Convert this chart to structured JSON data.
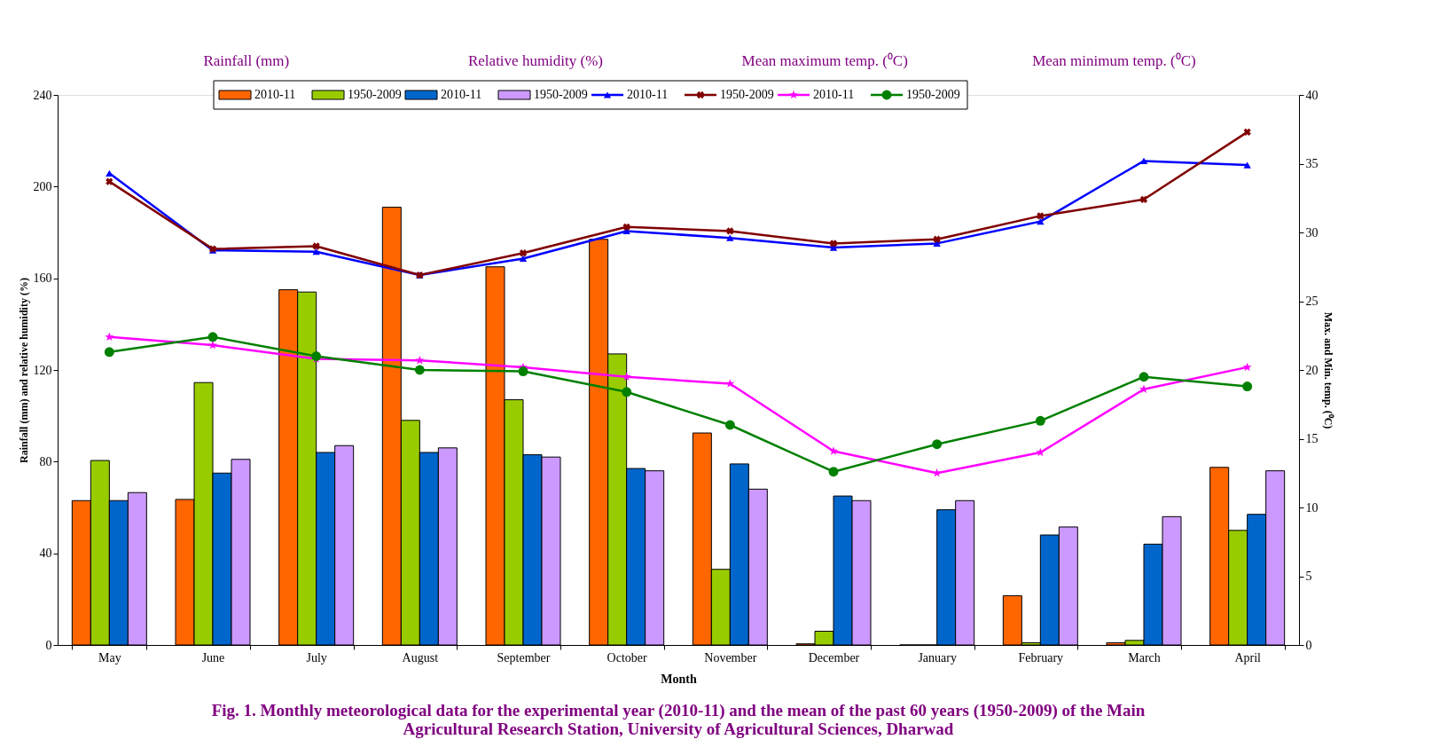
{
  "chart_data": {
    "type": "bar",
    "title": "Fig. 1. Monthly meteorological data for the experimental year (2010-11) and the mean of the past 60 years (1950-2009) of the Main\nAgricultural Research Station, University of Agricultural Sciences, Dharwad",
    "xlabel": "Month",
    "ylabel": "Rainfall (mm) and relative humidity (%)",
    "y2label": "Max. and Min. temp. (⁰C)",
    "annotations": [
      "Rainfall (mm)",
      "Relative humidity (%)",
      "Mean maximum  temp. (⁰C)",
      "Mean minimum temp. (⁰C)"
    ],
    "categories": [
      "May",
      "June",
      "July",
      "August",
      "September",
      "October",
      "November",
      "December",
      "January",
      "February",
      "March",
      "April"
    ],
    "ylim": [
      0,
      240
    ],
    "yticks": [
      0,
      40,
      80,
      120,
      160,
      200,
      240
    ],
    "y2lim": [
      0,
      40
    ],
    "y2ticks": [
      0,
      5,
      10,
      15,
      20,
      25,
      30,
      35,
      40
    ],
    "grid": false,
    "legend": "top",
    "series": [
      {
        "name": "2010-11",
        "type": "bar",
        "color": "#ff6600",
        "values": [
          63,
          63.5,
          155,
          191,
          165,
          177,
          92.5,
          0.5,
          0,
          21.5,
          1,
          77.5
        ]
      },
      {
        "name": "1950-2009",
        "type": "bar",
        "color": "#99cc00",
        "values": [
          80.5,
          114.5,
          154,
          98,
          107,
          127,
          33,
          6,
          0,
          1,
          2,
          50
        ]
      },
      {
        "name": "2010-11",
        "type": "bar",
        "color": "#0066cc",
        "values": [
          63,
          75,
          84,
          84,
          83,
          77,
          79,
          65,
          59,
          48,
          44,
          57
        ]
      },
      {
        "name": "1950-2009",
        "type": "bar",
        "color": "#cc99ff",
        "values": [
          66.5,
          81,
          87,
          86,
          82,
          76,
          68,
          63,
          63,
          51.5,
          56,
          76
        ]
      },
      {
        "name": "2010-11",
        "type": "line",
        "axis": "y2",
        "marker": "triangle",
        "color": "#0000ff",
        "values": [
          34.3,
          28.7,
          28.6,
          26.9,
          28.1,
          30.1,
          29.6,
          28.9,
          29.2,
          30.8,
          35.2,
          34.9
        ]
      },
      {
        "name": "1950-2009",
        "type": "line",
        "axis": "y2",
        "marker": "cross",
        "color": "#800000",
        "values": [
          33.7,
          28.8,
          29.0,
          26.9,
          28.5,
          30.4,
          30.1,
          29.2,
          29.5,
          31.2,
          32.4,
          37.3
        ]
      },
      {
        "name": "2010-11",
        "type": "line",
        "axis": "y2",
        "marker": "star",
        "color": "#ff00ff",
        "values": [
          22.4,
          21.8,
          20.8,
          20.7,
          20.2,
          19.5,
          19.0,
          14.1,
          12.5,
          14.0,
          18.6,
          20.2
        ]
      },
      {
        "name": "1950-2009",
        "type": "line",
        "axis": "y2",
        "marker": "circle",
        "color": "#008000",
        "values": [
          21.3,
          22.4,
          21.0,
          20.0,
          19.9,
          18.4,
          16.0,
          12.6,
          14.6,
          16.3,
          19.5,
          18.8
        ]
      }
    ]
  }
}
